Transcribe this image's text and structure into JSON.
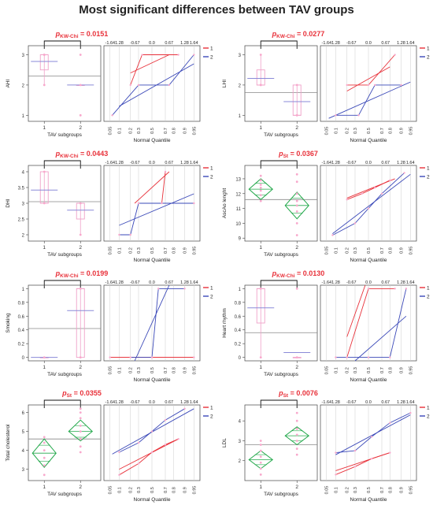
{
  "title": "Most significant differences between TAV groups",
  "colors": {
    "group1": "#e8313a",
    "group2": "#3a48b8",
    "box": "#f0a0c8",
    "points": "#f8a8cc",
    "diamond": "#22a84a",
    "mean_line": "#8a8ad8",
    "grand_mean": "#888888",
    "pvalue": "#e8313a",
    "axis": "#444444",
    "grid": "#cccccc"
  },
  "common": {
    "xlabel": "TAV subgroups",
    "nq_label": "Normal Quantile",
    "categories": [
      "1",
      "2"
    ],
    "nq_top_ticks": [
      "-1.64",
      "1.28",
      "-0.67",
      "0.0",
      "0.67",
      "1.28",
      "1.64"
    ],
    "nq_bottom_ticks": [
      "0.05",
      "0.1",
      "0.2",
      "0.3",
      "0.5",
      "0.7",
      "0.8",
      "0.9",
      "0.95"
    ],
    "legend": [
      "1",
      "2"
    ]
  },
  "chart_data": [
    {
      "type": "box",
      "ylabel": "AHI",
      "test_sym": "p",
      "test_sub": "KW-Chi",
      "p_value": "= 0.0151",
      "ylim": [
        0.8,
        3.3
      ],
      "yticks": [
        "1",
        "2",
        "3"
      ],
      "grand_mean": 2.3,
      "groups": [
        {
          "name": "1",
          "q1": 2.5,
          "median": 3,
          "q3": 3,
          "whisker_low": 2,
          "whisker_high": 3,
          "mean": 2.78,
          "points": [
            2,
            3,
            3
          ]
        },
        {
          "name": "2",
          "q1": 2,
          "median": 2,
          "q3": 2,
          "whisker_low": 2,
          "whisker_high": 2,
          "mean": 2.0,
          "points": [
            1,
            2,
            3
          ]
        }
      ],
      "qq": {
        "g1": [
          [
            0.2,
            2
          ],
          [
            0.35,
            3
          ],
          [
            0.85,
            3
          ]
        ],
        "g2": [
          [
            0.06,
            1
          ],
          [
            0.3,
            2
          ],
          [
            0.75,
            2
          ],
          [
            0.95,
            3
          ]
        ],
        "fit1": [
          [
            0.2,
            2.4
          ],
          [
            0.75,
            3.0
          ]
        ],
        "fit2": [
          [
            0.1,
            1.3
          ],
          [
            0.95,
            2.7
          ]
        ]
      }
    },
    {
      "type": "box",
      "ylabel": "LHI",
      "test_sym": "p",
      "test_sub": "KW-Chi",
      "p_value": "= 0.0277",
      "ylim": [
        0.8,
        3.3
      ],
      "yticks": [
        "1",
        "2",
        "3"
      ],
      "grand_mean": 1.75,
      "groups": [
        {
          "name": "1",
          "q1": 2,
          "median": 2,
          "q3": 2.5,
          "whisker_low": 2,
          "whisker_high": 3,
          "mean": 2.22,
          "points": [
            2,
            2,
            3
          ]
        },
        {
          "name": "2",
          "q1": 1,
          "median": 1,
          "q3": 2,
          "whisker_low": 1,
          "whisker_high": 2,
          "mean": 1.45,
          "points": [
            1,
            2
          ]
        }
      ],
      "qq": {
        "g1": [
          [
            0.2,
            2
          ],
          [
            0.5,
            2
          ],
          [
            0.85,
            3
          ]
        ],
        "g2": [
          [
            0.1,
            1
          ],
          [
            0.35,
            1
          ],
          [
            0.6,
            2
          ],
          [
            0.9,
            2
          ]
        ],
        "fit1": [
          [
            0.2,
            1.8
          ],
          [
            0.8,
            2.6
          ]
        ],
        "fit2": [
          [
            0.06,
            0.9
          ],
          [
            0.95,
            2.1
          ]
        ]
      }
    },
    {
      "type": "box",
      "ylabel": "DHI",
      "test_sym": "p",
      "test_sub": "KW-Chi",
      "p_value": "= 0.0443",
      "ylim": [
        1.8,
        4.2
      ],
      "yticks": [
        "2",
        "2.5",
        "3",
        "3.5",
        "4"
      ],
      "grand_mean": 3.05,
      "groups": [
        {
          "name": "1",
          "q1": 3,
          "median": 3,
          "q3": 4,
          "whisker_low": 3,
          "whisker_high": 4,
          "mean": 3.42,
          "points": [
            3,
            4
          ]
        },
        {
          "name": "2",
          "q1": 2.5,
          "median": 3,
          "q3": 3,
          "whisker_low": 2,
          "whisker_high": 3,
          "mean": 2.78,
          "points": [
            2,
            3
          ]
        }
      ],
      "qq": {
        "g1": [
          [
            0.3,
            3
          ],
          [
            0.65,
            3
          ],
          [
            0.7,
            4
          ]
        ],
        "g2": [
          [
            0.1,
            2
          ],
          [
            0.2,
            2
          ],
          [
            0.3,
            3
          ],
          [
            0.95,
            3
          ]
        ],
        "fit1": [
          [
            0.25,
            3.0
          ],
          [
            0.75,
            4.0
          ]
        ],
        "fit2": [
          [
            0.1,
            2.3
          ],
          [
            0.95,
            3.3
          ]
        ]
      }
    },
    {
      "type": "anova",
      "ylabel": "AscAo lenght",
      "test_sym": "p",
      "test_sub": "St",
      "p_value": "= 0.0367",
      "ylim": [
        8.8,
        13.9
      ],
      "yticks": [
        "9",
        "10",
        "11",
        "12",
        "13"
      ],
      "grand_mean": 11.6,
      "groups": [
        {
          "name": "1",
          "mean": 12.3,
          "ci": [
            11.6,
            13.0
          ],
          "points": [
            11.5,
            11.9,
            12.2,
            12.4,
            12.6,
            12.9,
            13.2
          ]
        },
        {
          "name": "2",
          "mean": 11.2,
          "ci": [
            10.3,
            12.1
          ],
          "points": [
            9.2,
            10.0,
            10.8,
            11.2,
            11.5,
            12.0,
            12.8,
            13.3
          ]
        }
      ],
      "qq": {
        "g1": [
          [
            0.2,
            11.6
          ],
          [
            0.4,
            12.0
          ],
          [
            0.6,
            12.4
          ],
          [
            0.8,
            12.9
          ]
        ],
        "g2": [
          [
            0.08,
            9.2
          ],
          [
            0.3,
            10.0
          ],
          [
            0.5,
            11.0
          ],
          [
            0.7,
            12.0
          ],
          [
            0.92,
            13.4
          ]
        ],
        "fit1": [
          [
            0.2,
            11.7
          ],
          [
            0.85,
            13.0
          ]
        ],
        "fit2": [
          [
            0.08,
            9.3
          ],
          [
            0.95,
            13.3
          ]
        ]
      }
    },
    {
      "type": "box",
      "ylabel": "Smoking",
      "test_sym": "p",
      "test_sub": "KW-Chi",
      "p_value": "= 0.0199",
      "ylim": [
        -0.05,
        1.05
      ],
      "yticks": [
        "0",
        "0.2",
        "0.4",
        "0.6",
        "0.8",
        "1"
      ],
      "grand_mean": 0.42,
      "groups": [
        {
          "name": "1",
          "q1": 0,
          "median": 0,
          "q3": 0,
          "whisker_low": 0,
          "whisker_high": 0,
          "mean": 0.0,
          "points": [
            0
          ]
        },
        {
          "name": "2",
          "q1": 0,
          "median": 1,
          "q3": 1,
          "whisker_low": 0,
          "whisker_high": 1,
          "mean": 0.68,
          "points": [
            0,
            1
          ]
        }
      ],
      "qq": {
        "g1": [
          [
            0.05,
            0
          ],
          [
            0.95,
            0
          ]
        ],
        "g2": [
          [
            0.2,
            0
          ],
          [
            0.5,
            0
          ],
          [
            0.6,
            1
          ],
          [
            0.9,
            1
          ]
        ],
        "fit1": [
          [
            0.05,
            0.0
          ],
          [
            0.95,
            0.0
          ]
        ],
        "fit2": [
          [
            0.25,
            -0.05
          ],
          [
            0.75,
            1.05
          ]
        ]
      }
    },
    {
      "type": "box",
      "ylabel": "Heart rhythm",
      "test_sym": "p",
      "test_sub": "KW-Chi",
      "p_value": "= 0.0130",
      "ylim": [
        -0.05,
        1.05
      ],
      "yticks": [
        "0",
        "0.2",
        "0.4",
        "0.6",
        "0.8",
        "1"
      ],
      "grand_mean": 0.36,
      "groups": [
        {
          "name": "1",
          "q1": 0.5,
          "median": 1,
          "q3": 1,
          "whisker_low": 0,
          "whisker_high": 1,
          "mean": 0.72,
          "points": [
            0,
            1
          ]
        },
        {
          "name": "2",
          "q1": 0,
          "median": 0,
          "q3": 0,
          "whisker_low": 0,
          "whisker_high": 0,
          "mean": 0.07,
          "points": [
            0,
            1
          ]
        }
      ],
      "qq": {
        "g1": [
          [
            0.2,
            0
          ],
          [
            0.5,
            1
          ],
          [
            0.85,
            1
          ]
        ],
        "g2": [
          [
            0.1,
            0
          ],
          [
            0.5,
            0
          ],
          [
            0.8,
            0
          ],
          [
            0.93,
            1
          ]
        ],
        "fit1": [
          [
            0.2,
            0.3
          ],
          [
            0.45,
            1.05
          ]
        ],
        "fit2": [
          [
            0.3,
            -0.05
          ],
          [
            0.93,
            0.6
          ]
        ]
      }
    },
    {
      "type": "anova",
      "ylabel": "Total cholesterol",
      "test_sym": "p",
      "test_sub": "St",
      "p_value": "= 0.0355",
      "ylim": [
        2.4,
        6.4
      ],
      "yticks": [
        "3",
        "4",
        "5",
        "6"
      ],
      "grand_mean": 4.6,
      "groups": [
        {
          "name": "1",
          "mean": 3.85,
          "ci": [
            3.1,
            4.6
          ],
          "points": [
            2.7,
            3.2,
            3.6,
            4.0,
            4.4,
            4.7
          ]
        },
        {
          "name": "2",
          "mean": 5.0,
          "ci": [
            4.5,
            5.6
          ],
          "points": [
            3.9,
            4.2,
            4.6,
            5.0,
            5.3,
            5.7,
            6.0,
            6.2
          ]
        }
      ],
      "qq": {
        "g1": [
          [
            0.1,
            2.7
          ],
          [
            0.3,
            3.3
          ],
          [
            0.5,
            3.9
          ],
          [
            0.7,
            4.3
          ],
          [
            0.85,
            4.6
          ]
        ],
        "g2": [
          [
            0.1,
            3.9
          ],
          [
            0.3,
            4.4
          ],
          [
            0.5,
            5.0
          ],
          [
            0.7,
            5.6
          ],
          [
            0.9,
            6.2
          ]
        ],
        "fit1": [
          [
            0.1,
            3.0
          ],
          [
            0.85,
            4.6
          ]
        ],
        "fit2": [
          [
            0.06,
            3.8
          ],
          [
            0.95,
            6.2
          ]
        ]
      }
    },
    {
      "type": "anova",
      "ylabel": "LDL",
      "test_sym": "p",
      "test_sub": "St",
      "p_value": "= 0.0076",
      "ylim": [
        1.0,
        4.8
      ],
      "yticks": [
        "2",
        "3",
        "4"
      ],
      "grand_mean": 2.8,
      "groups": [
        {
          "name": "1",
          "mean": 2.05,
          "ci": [
            1.6,
            2.5
          ],
          "points": [
            1.3,
            1.6,
            1.9,
            2.2,
            2.5,
            2.8,
            3.0
          ]
        },
        {
          "name": "2",
          "mean": 3.25,
          "ci": [
            2.8,
            3.7
          ],
          "points": [
            2.3,
            2.6,
            3.0,
            3.3,
            3.6,
            4.0,
            4.4
          ]
        }
      ],
      "qq": {
        "g1": [
          [
            0.1,
            1.3
          ],
          [
            0.3,
            1.7
          ],
          [
            0.55,
            2.1
          ],
          [
            0.8,
            2.4
          ]
        ],
        "g2": [
          [
            0.1,
            2.4
          ],
          [
            0.3,
            2.5
          ],
          [
            0.55,
            3.2
          ],
          [
            0.8,
            3.9
          ],
          [
            0.95,
            4.4
          ]
        ],
        "fit1": [
          [
            0.1,
            1.5
          ],
          [
            0.8,
            2.4
          ]
        ],
        "fit2": [
          [
            0.1,
            2.3
          ],
          [
            0.95,
            4.3
          ]
        ]
      }
    }
  ]
}
